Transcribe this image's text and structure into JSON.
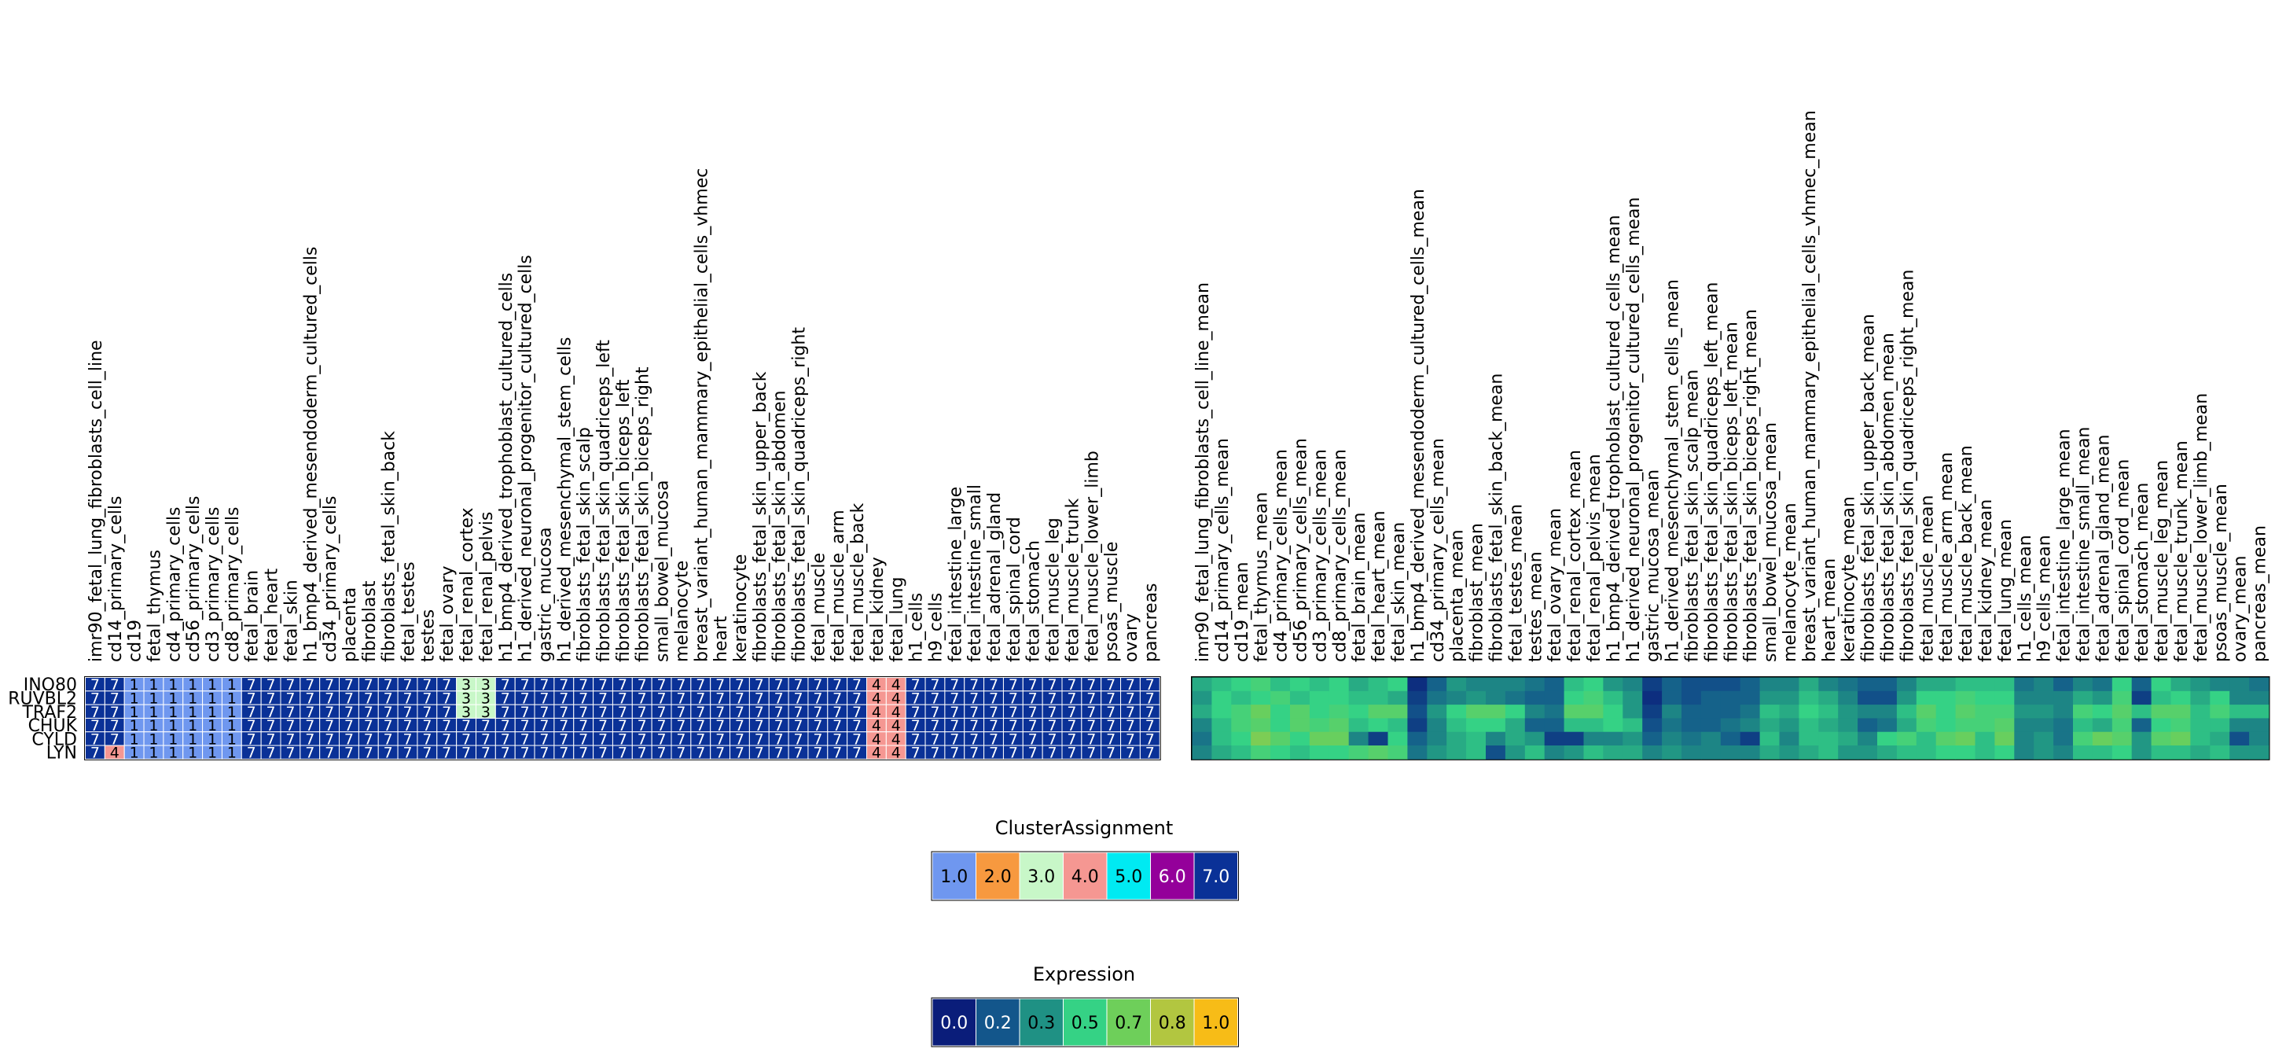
{
  "chart_data": [
    {
      "type": "heatmap",
      "name": "cluster-heatmap",
      "rows": [
        "INO80",
        "RUVBL2",
        "TRAF2",
        "CHUK",
        "CYLD",
        "LYN"
      ],
      "columns": [
        "imr90_fetal_lung_fibroblasts_cell_line",
        "cd14_primary_cells",
        "cd19",
        "fetal_thymus",
        "cd4_primary_cells",
        "cd56_primary_cells",
        "cd3_primary_cells",
        "cd8_primary_cells",
        "fetal_brain",
        "fetal_heart",
        "fetal_skin",
        "h1_bmp4_derived_mesendoderm_cultured_cells",
        "cd34_primary_cells",
        "placenta",
        "fibroblast",
        "fibroblasts_fetal_skin_back",
        "fetal_testes",
        "testes",
        "fetal_ovary",
        "fetal_renal_cortex",
        "fetal_renal_pelvis",
        "h1_bmp4_derived_trophoblast_cultured_cells",
        "h1_derived_neuronal_progenitor_cultured_cells",
        "gastric_mucosa",
        "h1_derived_mesenchymal_stem_cells",
        "fibroblasts_fetal_skin_scalp",
        "fibroblasts_fetal_skin_quadriceps_left",
        "fibroblasts_fetal_skin_biceps_left",
        "fibroblasts_fetal_skin_biceps_right",
        "small_bowel_mucosa",
        "melanocyte",
        "breast_variant_human_mammary_epithelial_cells_vhmec",
        "heart",
        "keratinocyte",
        "fibroblasts_fetal_skin_upper_back",
        "fibroblasts_fetal_skin_abdomen",
        "fibroblasts_fetal_skin_quadriceps_right",
        "fetal_muscle",
        "fetal_muscle_arm",
        "fetal_muscle_back",
        "fetal_kidney",
        "fetal_lung",
        "h1_cells",
        "h9_cells",
        "fetal_intestine_large",
        "fetal_intestine_small",
        "fetal_adrenal_gland",
        "fetal_spinal_cord",
        "fetal_stomach",
        "fetal_muscle_leg",
        "fetal_muscle_trunk",
        "fetal_muscle_lower_limb",
        "psoas_muscle",
        "ovary",
        "pancreas"
      ],
      "values": [
        [
          7,
          7,
          1,
          1,
          1,
          1,
          1,
          1,
          7,
          7,
          7,
          7,
          7,
          7,
          7,
          7,
          7,
          7,
          7,
          3,
          3,
          7,
          7,
          7,
          7,
          7,
          7,
          7,
          7,
          7,
          7,
          7,
          7,
          7,
          7,
          7,
          7,
          7,
          7,
          7,
          4,
          4,
          7,
          7,
          7,
          7,
          7,
          7,
          7,
          7,
          7,
          7,
          7,
          7,
          7
        ],
        [
          7,
          7,
          1,
          1,
          1,
          1,
          1,
          1,
          7,
          7,
          7,
          7,
          7,
          7,
          7,
          7,
          7,
          7,
          7,
          3,
          3,
          7,
          7,
          7,
          7,
          7,
          7,
          7,
          7,
          7,
          7,
          7,
          7,
          7,
          7,
          7,
          7,
          7,
          7,
          7,
          4,
          4,
          7,
          7,
          7,
          7,
          7,
          7,
          7,
          7,
          7,
          7,
          7,
          7,
          7
        ],
        [
          7,
          7,
          1,
          1,
          1,
          1,
          1,
          1,
          7,
          7,
          7,
          7,
          7,
          7,
          7,
          7,
          7,
          7,
          7,
          3,
          3,
          7,
          7,
          7,
          7,
          7,
          7,
          7,
          7,
          7,
          7,
          7,
          7,
          7,
          7,
          7,
          7,
          7,
          7,
          7,
          4,
          4,
          7,
          7,
          7,
          7,
          7,
          7,
          7,
          7,
          7,
          7,
          7,
          7,
          7
        ],
        [
          7,
          7,
          1,
          1,
          1,
          1,
          1,
          1,
          7,
          7,
          7,
          7,
          7,
          7,
          7,
          7,
          7,
          7,
          7,
          7,
          7,
          7,
          7,
          7,
          7,
          7,
          7,
          7,
          7,
          7,
          7,
          7,
          7,
          7,
          7,
          7,
          7,
          7,
          7,
          7,
          4,
          4,
          7,
          7,
          7,
          7,
          7,
          7,
          7,
          7,
          7,
          7,
          7,
          7,
          7
        ],
        [
          7,
          7,
          1,
          1,
          1,
          1,
          1,
          1,
          7,
          7,
          7,
          7,
          7,
          7,
          7,
          7,
          7,
          7,
          7,
          7,
          7,
          7,
          7,
          7,
          7,
          7,
          7,
          7,
          7,
          7,
          7,
          7,
          7,
          7,
          7,
          7,
          7,
          7,
          7,
          7,
          4,
          4,
          7,
          7,
          7,
          7,
          7,
          7,
          7,
          7,
          7,
          7,
          7,
          7,
          7
        ],
        [
          7,
          4,
          1,
          1,
          1,
          1,
          1,
          1,
          7,
          7,
          7,
          7,
          7,
          7,
          7,
          7,
          7,
          7,
          7,
          7,
          7,
          7,
          7,
          7,
          7,
          7,
          7,
          7,
          7,
          7,
          7,
          7,
          7,
          7,
          7,
          7,
          7,
          7,
          7,
          7,
          4,
          4,
          7,
          7,
          7,
          7,
          7,
          7,
          7,
          7,
          7,
          7,
          7,
          7,
          7
        ]
      ]
    },
    {
      "type": "heatmap",
      "name": "expression-heatmap",
      "rows": [
        "INO80",
        "RUVBL2",
        "TRAF2",
        "CHUK",
        "CYLD",
        "LYN"
      ],
      "columns": [
        "imr90_fetal_lung_fibroblasts_cell_line_mean",
        "cd14_primary_cells_mean",
        "cd19_mean",
        "fetal_thymus_mean",
        "cd4_primary_cells_mean",
        "cd56_primary_cells_mean",
        "cd3_primary_cells_mean",
        "cd8_primary_cells_mean",
        "fetal_brain_mean",
        "fetal_heart_mean",
        "fetal_skin_mean",
        "h1_bmp4_derived_mesendoderm_cultured_cells_mean",
        "cd34_primary_cells_mean",
        "placenta_mean",
        "fibroblast_mean",
        "fibroblasts_fetal_skin_back_mean",
        "fetal_testes_mean",
        "testes_mean",
        "fetal_ovary_mean",
        "fetal_renal_cortex_mean",
        "fetal_renal_pelvis_mean",
        "h1_bmp4_derived_trophoblast_cultured_cells_mean",
        "h1_derived_neuronal_progenitor_cultured_cells_mean",
        "gastric_mucosa_mean",
        "h1_derived_mesenchymal_stem_cells_mean",
        "fibroblasts_fetal_skin_scalp_mean",
        "fibroblasts_fetal_skin_quadriceps_left_mean",
        "fibroblasts_fetal_skin_biceps_left_mean",
        "fibroblasts_fetal_skin_biceps_right_mean",
        "small_bowel_mucosa_mean",
        "melanocyte_mean",
        "breast_variant_human_mammary_epithelial_cells_vhmec_mean",
        "heart_mean",
        "keratinocyte_mean",
        "fibroblasts_fetal_skin_upper_back_mean",
        "fibroblasts_fetal_skin_abdomen_mean",
        "fibroblasts_fetal_skin_quadriceps_right_mean",
        "fetal_muscle_mean",
        "fetal_muscle_arm_mean",
        "fetal_muscle_back_mean",
        "fetal_kidney_mean",
        "fetal_lung_mean",
        "h1_cells_mean",
        "h9_cells_mean",
        "fetal_intestine_large_mean",
        "fetal_intestine_small_mean",
        "fetal_adrenal_gland_mean",
        "fetal_spinal_cord_mean",
        "fetal_stomach_mean",
        "fetal_muscle_leg_mean",
        "fetal_muscle_trunk_mean",
        "fetal_muscle_lower_limb_mean",
        "psoas_muscle_mean",
        "ovary_mean",
        "pancreas_mean"
      ],
      "values": [
        [
          0.4,
          0.45,
          0.5,
          0.55,
          0.45,
          0.5,
          0.45,
          0.5,
          0.4,
          0.45,
          0.5,
          0.05,
          0.2,
          0.35,
          0.3,
          0.3,
          0.3,
          0.25,
          0.2,
          0.45,
          0.5,
          0.35,
          0.3,
          0.1,
          0.2,
          0.15,
          0.15,
          0.15,
          0.2,
          0.3,
          0.3,
          0.4,
          0.3,
          0.25,
          0.2,
          0.2,
          0.3,
          0.4,
          0.4,
          0.45,
          0.45,
          0.45,
          0.25,
          0.3,
          0.2,
          0.3,
          0.25,
          0.5,
          0.2,
          0.5,
          0.4,
          0.35,
          0.3,
          0.3,
          0.25
        ],
        [
          0.35,
          0.5,
          0.45,
          0.5,
          0.55,
          0.45,
          0.5,
          0.5,
          0.45,
          0.45,
          0.4,
          0.1,
          0.25,
          0.3,
          0.35,
          0.3,
          0.25,
          0.2,
          0.2,
          0.5,
          0.55,
          0.45,
          0.35,
          0.05,
          0.2,
          0.15,
          0.2,
          0.2,
          0.2,
          0.35,
          0.35,
          0.45,
          0.4,
          0.3,
          0.15,
          0.15,
          0.35,
          0.5,
          0.5,
          0.55,
          0.5,
          0.5,
          0.3,
          0.3,
          0.3,
          0.4,
          0.35,
          0.55,
          0.1,
          0.45,
          0.5,
          0.4,
          0.5,
          0.3,
          0.3
        ],
        [
          0.4,
          0.5,
          0.55,
          0.65,
          0.5,
          0.6,
          0.5,
          0.55,
          0.5,
          0.6,
          0.6,
          0.15,
          0.35,
          0.5,
          0.6,
          0.6,
          0.5,
          0.3,
          0.25,
          0.6,
          0.6,
          0.5,
          0.35,
          0.1,
          0.3,
          0.2,
          0.2,
          0.2,
          0.25,
          0.45,
          0.4,
          0.5,
          0.45,
          0.35,
          0.3,
          0.3,
          0.45,
          0.6,
          0.5,
          0.6,
          0.55,
          0.55,
          0.35,
          0.35,
          0.3,
          0.55,
          0.5,
          0.6,
          0.45,
          0.6,
          0.6,
          0.45,
          0.55,
          0.45,
          0.45
        ],
        [
          0.3,
          0.45,
          0.55,
          0.6,
          0.5,
          0.6,
          0.55,
          0.6,
          0.45,
          0.5,
          0.45,
          0.1,
          0.3,
          0.45,
          0.5,
          0.5,
          0.4,
          0.2,
          0.2,
          0.45,
          0.45,
          0.5,
          0.45,
          0.15,
          0.25,
          0.2,
          0.2,
          0.25,
          0.3,
          0.4,
          0.35,
          0.45,
          0.4,
          0.35,
          0.2,
          0.25,
          0.4,
          0.55,
          0.5,
          0.55,
          0.55,
          0.6,
          0.3,
          0.3,
          0.25,
          0.45,
          0.4,
          0.55,
          0.2,
          0.5,
          0.55,
          0.45,
          0.45,
          0.3,
          0.3
        ],
        [
          0.25,
          0.45,
          0.5,
          0.7,
          0.6,
          0.5,
          0.65,
          0.65,
          0.3,
          0.1,
          0.5,
          0.2,
          0.3,
          0.4,
          0.45,
          0.3,
          0.4,
          0.35,
          0.1,
          0.1,
          0.3,
          0.3,
          0.35,
          0.2,
          0.3,
          0.25,
          0.3,
          0.2,
          0.1,
          0.45,
          0.3,
          0.45,
          0.45,
          0.4,
          0.3,
          0.5,
          0.55,
          0.45,
          0.6,
          0.65,
          0.45,
          0.65,
          0.3,
          0.35,
          0.25,
          0.55,
          0.65,
          0.6,
          0.35,
          0.6,
          0.65,
          0.45,
          0.4,
          0.15,
          0.3
        ],
        [
          0.3,
          0.4,
          0.45,
          0.55,
          0.5,
          0.45,
          0.5,
          0.5,
          0.55,
          0.6,
          0.55,
          0.25,
          0.35,
          0.4,
          0.45,
          0.15,
          0.35,
          0.45,
          0.3,
          0.35,
          0.45,
          0.4,
          0.4,
          0.3,
          0.35,
          0.3,
          0.3,
          0.3,
          0.3,
          0.4,
          0.35,
          0.4,
          0.45,
          0.35,
          0.35,
          0.4,
          0.45,
          0.45,
          0.5,
          0.5,
          0.45,
          0.5,
          0.3,
          0.35,
          0.3,
          0.45,
          0.45,
          0.5,
          0.35,
          0.45,
          0.45,
          0.4,
          0.45,
          0.35,
          0.35
        ]
      ]
    }
  ],
  "legends": {
    "cluster": {
      "title": "ClusterAssignment",
      "labels": [
        "1.0",
        "2.0",
        "3.0",
        "4.0",
        "5.0",
        "6.0",
        "7.0"
      ],
      "colors": [
        "#6f97ef",
        "#f7993f",
        "#c8f7c8",
        "#f59792",
        "#00eaf2",
        "#94009a",
        "#0a3197"
      ]
    },
    "expression": {
      "title": "Expression",
      "labels": [
        "0.0",
        "0.2",
        "0.3",
        "0.5",
        "0.7",
        "0.8",
        "1.0"
      ],
      "colors": [
        "#0a1d7a",
        "#13568b",
        "#1f9184",
        "#35d285",
        "#6ecf5a",
        "#b2c640",
        "#f7bc17"
      ]
    }
  }
}
